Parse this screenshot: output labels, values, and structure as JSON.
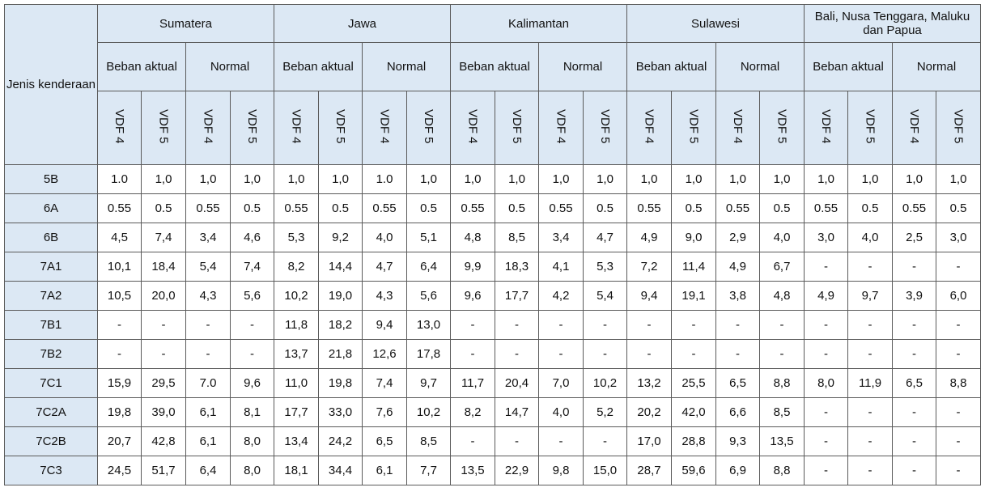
{
  "header": {
    "corner": "Jenis kenderaan",
    "regions": [
      "Sumatera",
      "Jawa",
      "Kalimantan",
      "Sulawesi",
      "Bali, Nusa Tenggara, Maluku dan Papua"
    ],
    "load_types": [
      "Beban aktual",
      "Normal"
    ],
    "vdf_labels": [
      "VDF 4",
      "VDF 5"
    ]
  },
  "rows": [
    {
      "type": "5B",
      "values": [
        "1.0",
        "1,0",
        "1,0",
        "1,0",
        "1,0",
        "1,0",
        "1.0",
        "1,0",
        "1,0",
        "1,0",
        "1,0",
        "1,0",
        "1,0",
        "1,0",
        "1,0",
        "1,0",
        "1,0",
        "1,0",
        "1,0",
        "1,0"
      ]
    },
    {
      "type": "6A",
      "values": [
        "0.55",
        "0.5",
        "0.55",
        "0.5",
        "0.55",
        "0.5",
        "0.55",
        "0.5",
        "0.55",
        "0.5",
        "0.55",
        "0.5",
        "0.55",
        "0.5",
        "0.55",
        "0.5",
        "0.55",
        "0.5",
        "0.55",
        "0.5"
      ]
    },
    {
      "type": "6B",
      "values": [
        "4,5",
        "7,4",
        "3,4",
        "4,6",
        "5,3",
        "9,2",
        "4,0",
        "5,1",
        "4,8",
        "8,5",
        "3,4",
        "4,7",
        "4,9",
        "9,0",
        "2,9",
        "4,0",
        "3,0",
        "4,0",
        "2,5",
        "3,0"
      ]
    },
    {
      "type": "7A1",
      "values": [
        "10,1",
        "18,4",
        "5,4",
        "7,4",
        "8,2",
        "14,4",
        "4,7",
        "6,4",
        "9,9",
        "18,3",
        "4,1",
        "5,3",
        "7,2",
        "11,4",
        "4,9",
        "6,7",
        "-",
        "-",
        "-",
        "-"
      ]
    },
    {
      "type": "7A2",
      "values": [
        "10,5",
        "20,0",
        "4,3",
        "5,6",
        "10,2",
        "19,0",
        "4,3",
        "5,6",
        "9,6",
        "17,7",
        "4,2",
        "5,4",
        "9,4",
        "19,1",
        "3,8",
        "4,8",
        "4,9",
        "9,7",
        "3,9",
        "6,0"
      ]
    },
    {
      "type": "7B1",
      "values": [
        "-",
        "-",
        "-",
        "-",
        "11,8",
        "18,2",
        "9,4",
        "13,0",
        "-",
        "-",
        "-",
        "-",
        "-",
        "-",
        "-",
        "-",
        "-",
        "-",
        "-",
        "-"
      ]
    },
    {
      "type": "7B2",
      "values": [
        "-",
        "-",
        "-",
        "-",
        "13,7",
        "21,8",
        "12,6",
        "17,8",
        "-",
        "-",
        "-",
        "-",
        "-",
        "-",
        "-",
        "-",
        "-",
        "-",
        "-",
        "-"
      ]
    },
    {
      "type": "7C1",
      "values": [
        "15,9",
        "29,5",
        "7.0",
        "9,6",
        "11,0",
        "19,8",
        "7,4",
        "9,7",
        "11,7",
        "20,4",
        "7,0",
        "10,2",
        "13,2",
        "25,5",
        "6,5",
        "8,8",
        "8,0",
        "11,9",
        "6,5",
        "8,8"
      ]
    },
    {
      "type": "7C2A",
      "values": [
        "19,8",
        "39,0",
        "6,1",
        "8,1",
        "17,7",
        "33,0",
        "7,6",
        "10,2",
        "8,2",
        "14,7",
        "4,0",
        "5,2",
        "20,2",
        "42,0",
        "6,6",
        "8,5",
        "-",
        "-",
        "-",
        "-"
      ]
    },
    {
      "type": "7C2B",
      "values": [
        "20,7",
        "42,8",
        "6,1",
        "8,0",
        "13,4",
        "24,2",
        "6,5",
        "8,5",
        "-",
        "-",
        "-",
        "-",
        "17,0",
        "28,8",
        "9,3",
        "13,5",
        "-",
        "-",
        "-",
        "-"
      ]
    },
    {
      "type": "7C3",
      "values": [
        "24,5",
        "51,7",
        "6,4",
        "8,0",
        "18,1",
        "34,4",
        "6,1",
        "7,7",
        "13,5",
        "22,9",
        "9,8",
        "15,0",
        "28,7",
        "59,6",
        "6,9",
        "8,8",
        "-",
        "-",
        "-",
        "-"
      ]
    }
  ]
}
